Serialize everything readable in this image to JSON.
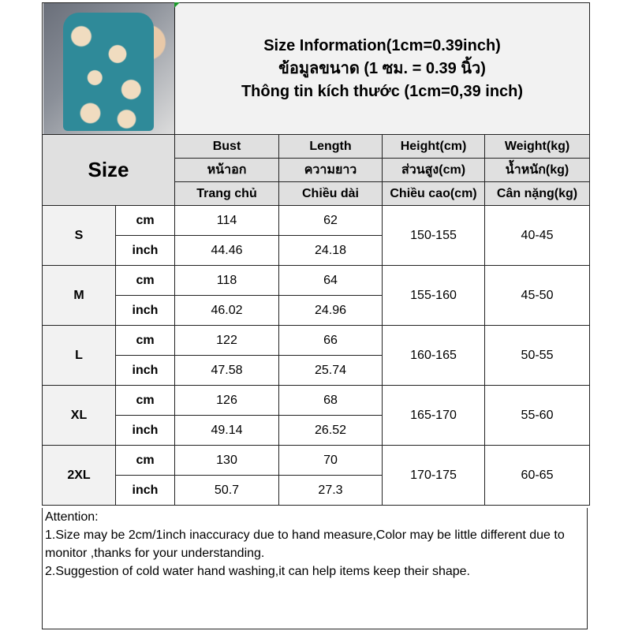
{
  "title_lines": [
    "Size Information(1cm=0.39inch)",
    "ข้อมูลขนาด (1 ซม. = 0.39 นิ้ว)",
    "Thông tin kích thước (1cm=0,39 inch)"
  ],
  "size_header": "Size",
  "columns": [
    {
      "en": "Bust",
      "th": "หน้าอก",
      "vi": "Trang chủ"
    },
    {
      "en": "Length",
      "th": "ความยาว",
      "vi": "Chiều dài"
    },
    {
      "en": "Height(cm)",
      "th": "ส่วนสูง(cm)",
      "vi": "Chiều cao(cm)"
    },
    {
      "en": "Weight(kg)",
      "th": "น้ำหนัก(kg)",
      "vi": "Cân nặng(kg)"
    }
  ],
  "units": {
    "cm": "cm",
    "inch": "inch"
  },
  "rows": [
    {
      "size": "S",
      "bust_cm": "114",
      "length_cm": "62",
      "bust_in": "44.46",
      "length_in": "24.18",
      "height": "150-155",
      "weight": "40-45"
    },
    {
      "size": "M",
      "bust_cm": "118",
      "length_cm": "64",
      "bust_in": "46.02",
      "length_in": "24.96",
      "height": "155-160",
      "weight": "45-50"
    },
    {
      "size": "L",
      "bust_cm": "122",
      "length_cm": "66",
      "bust_in": "47.58",
      "length_in": "25.74",
      "height": "160-165",
      "weight": "50-55"
    },
    {
      "size": "XL",
      "bust_cm": "126",
      "length_cm": "68",
      "bust_in": "49.14",
      "length_in": "26.52",
      "height": "165-170",
      "weight": "55-60"
    },
    {
      "size": "2XL",
      "bust_cm": "130",
      "length_cm": "70",
      "bust_in": "50.7",
      "length_in": "27.3",
      "height": "170-175",
      "weight": "60-65"
    }
  ],
  "attention": {
    "heading": "Attention:",
    "lines": [
      "1.Size may be 2cm/1inch inaccuracy due to hand measure,Color may be little different due to monitor ,thanks for your understanding.",
      "2.Suggestion of cold water hand washing,it can help items keep their shape."
    ]
  }
}
